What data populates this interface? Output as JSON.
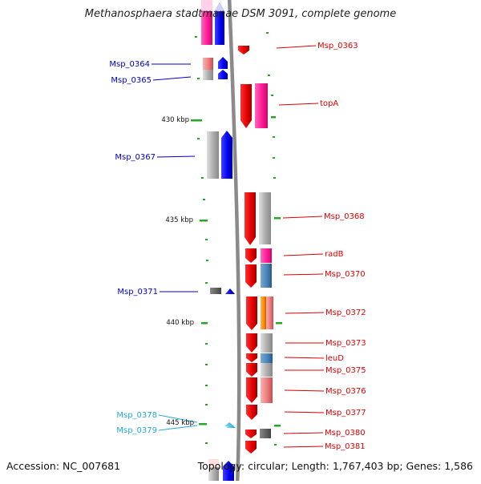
{
  "title": "Methanosphaera stadtmanae DSM 3091, complete genome",
  "footer": {
    "accession": "Accession: NC_007681",
    "topology_summary": "Topology: circular; Length: 1,767,403 bp; Genes: 1,586"
  },
  "kbp_ticks": [
    "430 kbp",
    "435 kbp",
    "440 kbp",
    "445 kbp"
  ],
  "labels_left": [
    {
      "text": "Msp_0364",
      "color": "#0000cc"
    },
    {
      "text": "Msp_0365",
      "color": "#0000cc"
    },
    {
      "text": "Msp_0367",
      "color": "#0000cc"
    },
    {
      "text": "Msp_0371",
      "color": "#0000cc"
    },
    {
      "text": "Msp_0378",
      "color": "#22aadd"
    },
    {
      "text": "Msp_0379",
      "color": "#22aadd"
    }
  ],
  "labels_right": [
    {
      "text": "Msp_0363",
      "color": "#dd0000"
    },
    {
      "text": "topA",
      "color": "#dd0000"
    },
    {
      "text": "Msp_0368",
      "color": "#dd0000"
    },
    {
      "text": "radB",
      "color": "#dd0000"
    },
    {
      "text": "Msp_0370",
      "color": "#dd0000"
    },
    {
      "text": "Msp_0372",
      "color": "#dd0000"
    },
    {
      "text": "Msp_0373",
      "color": "#dd0000"
    },
    {
      "text": "leuD",
      "color": "#dd0000"
    },
    {
      "text": "Msp_0375",
      "color": "#dd0000"
    },
    {
      "text": "Msp_0376",
      "color": "#dd0000"
    },
    {
      "text": "Msp_0377",
      "color": "#dd0000"
    },
    {
      "text": "Msp_0380",
      "color": "#dd0000"
    },
    {
      "text": "Msp_0381",
      "color": "#dd0000"
    }
  ],
  "colors": {
    "forward_strand": "#ff0000",
    "reverse_strand": "#0000ff",
    "backbone": "#888888",
    "tick": "#22aa22"
  }
}
